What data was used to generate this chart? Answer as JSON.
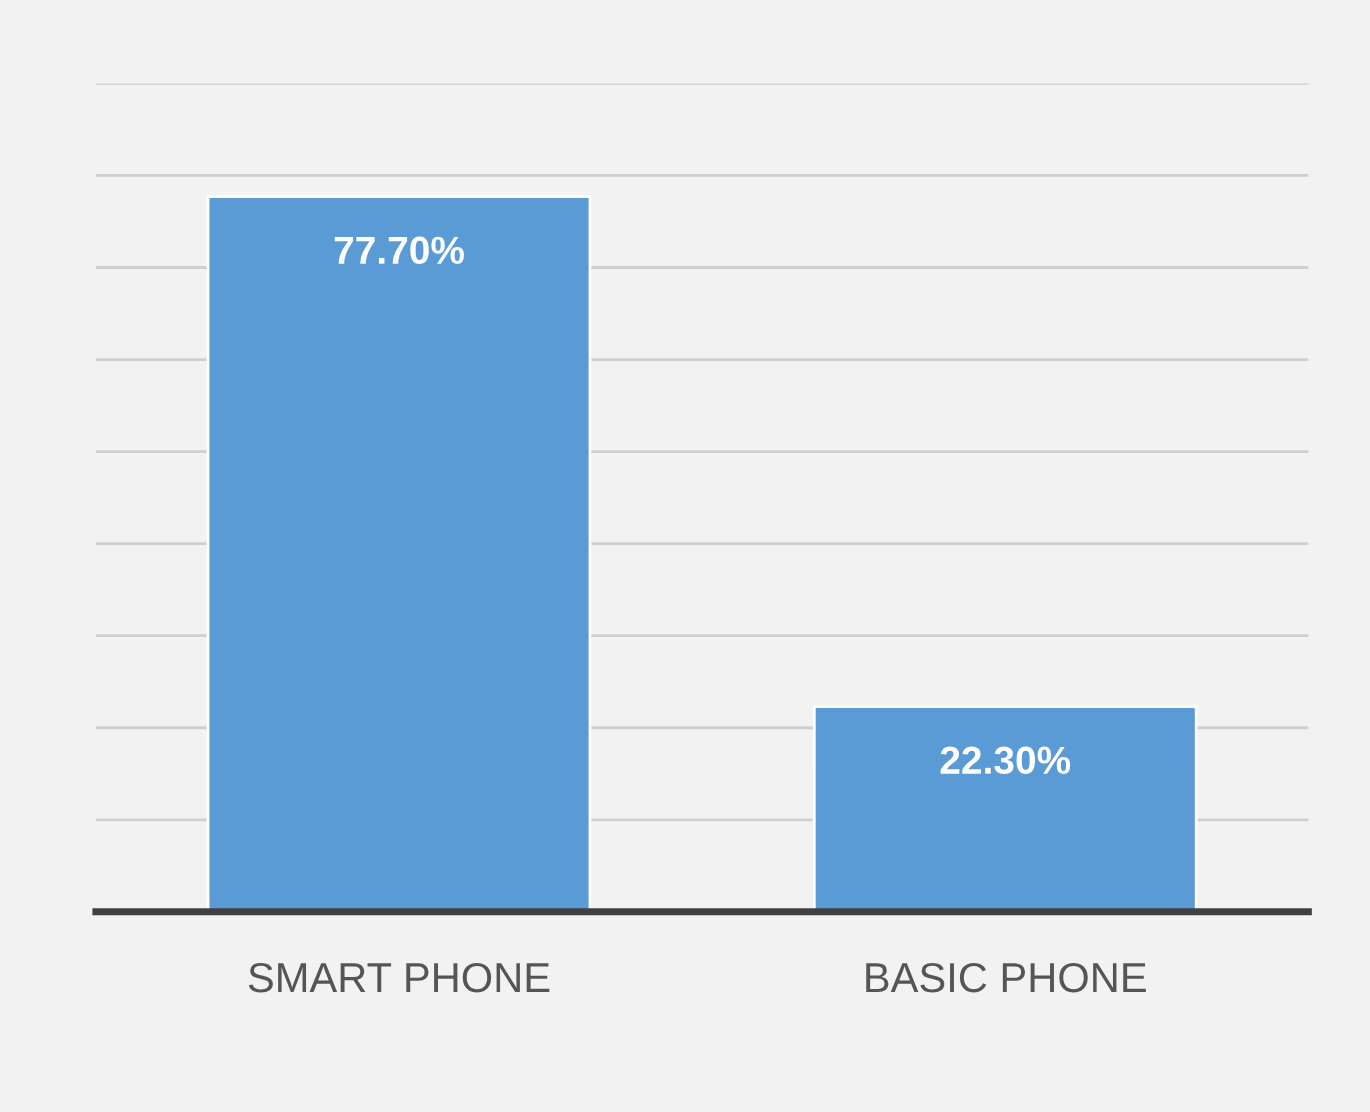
{
  "chart_data": {
    "type": "bar",
    "categories": [
      "SMART PHONE",
      "BASIC PHONE"
    ],
    "values": [
      77.7,
      22.3
    ],
    "value_labels": [
      "77.70%",
      "22.30%"
    ],
    "color": "#5b9bd5",
    "ylim": [
      0,
      90
    ],
    "yticks": [
      {
        "value": 0,
        "label": null
      },
      {
        "value": 10,
        "label": null
      },
      {
        "value": 20,
        "label": null
      },
      {
        "value": 30,
        "label": null
      },
      {
        "value": 40,
        "label": null
      },
      {
        "value": 50,
        "label": null
      },
      {
        "value": 60,
        "label": null
      },
      {
        "value": 70,
        "label": null
      },
      {
        "value": 80,
        "label": null
      },
      {
        "value": 90,
        "label": null
      }
    ],
    "tick_labels": "x",
    "grid": "y"
  }
}
